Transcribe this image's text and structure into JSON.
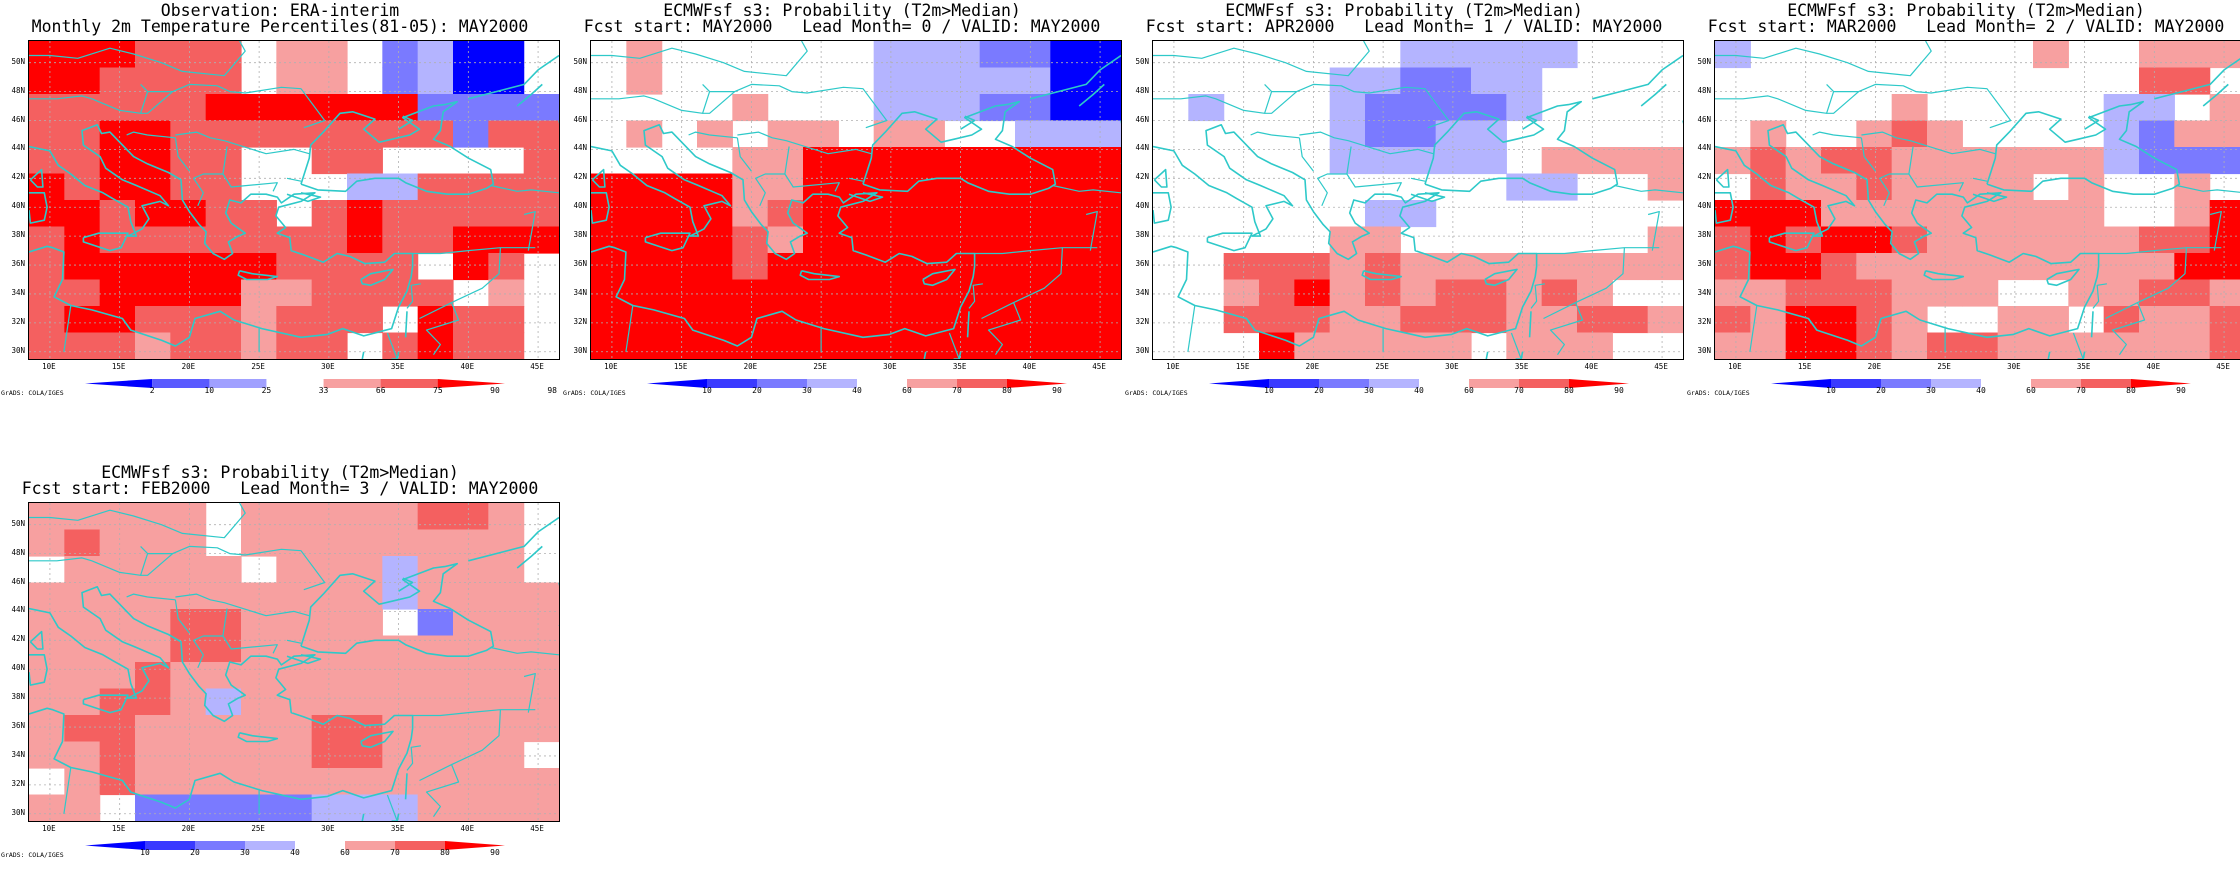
{
  "panels": [
    {
      "title1": "Observation: ERA-interim",
      "title2": "Monthly 2m Temperature Percentiles(81-05): MAY2000",
      "colorbar": [
        "2",
        "10",
        "25",
        "33",
        "66",
        "75",
        "90",
        "98"
      ],
      "colorbar_colors": [
        "#0000ff",
        "#5a5aff",
        "#a0a0ff",
        "#ffffff",
        "#f7a0a0",
        "#f46060",
        "#ff0000"
      ],
      "grads": "GrADS: COLA/IGES",
      "grid": [
        "DDDCCC-PP-GHBB-",
        "DDCCCC-PP-GHBB-",
        "CCCCCDDDDDDGGGG",
        "CCDDCCCCCCCCGCC",
        "CCDDCC--CC----C",
        "DCDDCC---HHCCCC",
        "DDCDDCC-CDCCCCC",
        "CDCCCCCCCDCCDDD",
        "CDDDDDDCCCC-DC-",
        "CCDDDDPPCCCC-P-",
        "CDDCCCPCCC-DCC-",
        "CCCPCCPCC-CDCC-"
      ]
    },
    {
      "title1": "ECMWFsf s3: Probability (T2m>Median)",
      "title2": "Fcst start: MAY2000   Lead Month= 0 / VALID: MAY2000",
      "colorbar": [
        "10",
        "20",
        "30",
        "40",
        "60",
        "70",
        "80",
        "90"
      ],
      "colorbar_colors": [
        "#0000ff",
        "#3a3aff",
        "#7a7aff",
        "#b4b4ff",
        "#ffffff",
        "#f7a0a0",
        "#f46060",
        "#ff0000"
      ],
      "grads": "GrADS: COLA/IGES",
      "grid": [
        "-P------HHHGGBB",
        "-P------HHHHHBB",
        "----P---HHHGGBB",
        "-P-P-PP-PP--HHH",
        "----PPDDDDDDDDD",
        "DDDDPPDDDDDDDDD",
        "DDDDPCDDDDDDDDD",
        "DDDDCPDDDDDDDDD",
        "DDDDCDDDDDDDDDD",
        "DDDDDDDDDDDDDDD",
        "DDDDDDDDDDDDDDD",
        "DDDDDDDDDDDDDDD"
      ]
    },
    {
      "title1": "ECMWFsf s3: Probability (T2m>Median)",
      "title2": "Fcst start: APR2000   Lead Month= 1 / VALID: MAY2000",
      "colorbar": [
        "10",
        "20",
        "30",
        "40",
        "60",
        "70",
        "80",
        "90"
      ],
      "colorbar_colors": [
        "#0000ff",
        "#3a3aff",
        "#7a7aff",
        "#b4b4ff",
        "#ffffff",
        "#f7a0a0",
        "#f46060",
        "#ff0000"
      ],
      "grads": "GrADS: COLA/IGES",
      "grid": [
        "-------HHHHH---",
        "-----HHGGHH----",
        "-H---HGGGGH----",
        "-----HGGHH-----",
        "-----HHHHH-PPPP",
        "----------HH--P",
        "------HH-------",
        "-----PP-------P",
        "--CCCPCPPPPPPPP",
        "--PCDPCPCCPCP--",
        "--CCCPPCCCPPCCP",
        "---DPPPPP-PPP--"
      ]
    },
    {
      "title1": "ECMWFsf s3: Probability (T2m>Median)",
      "title2": "Fcst start: MAR2000   Lead Month= 2 / VALID: MAY2000",
      "colorbar": [
        "10",
        "20",
        "30",
        "40",
        "60",
        "70",
        "80",
        "90"
      ],
      "colorbar_colors": [
        "#0000ff",
        "#3a3aff",
        "#7a7aff",
        "#b4b4ff",
        "#ffffff",
        "#f7a0a0",
        "#f46060",
        "#ff0000"
      ],
      "grads": "GrADS: COLA/IGES",
      "grid": [
        "H--------P--PPP",
        "------------CC-",
        "-----P-----HH-P",
        "-P--PCP----HGPP",
        "PCPCCPPPPPPHGGG",
        "-CPPCPPPP-P--P-",
        "DDDPPPPPPPP--PD",
        "CDCDDCPPPPPPCCD",
        "CDDCPPPPPPPPPDD",
        "PPCCCPPP--PPCCP",
        "CPDDCP--PP-CPPC",
        "PPDDCPCCPPPPPPC"
      ]
    },
    {
      "title1": "ECMWFsf s3: Probability (T2m>Median)",
      "title2": "Fcst start: FEB2000   Lead Month= 3 / VALID: MAY2000",
      "colorbar": [
        "10",
        "20",
        "30",
        "40",
        "60",
        "70",
        "80",
        "90"
      ],
      "colorbar_colors": [
        "#0000ff",
        "#3a3aff",
        "#7a7aff",
        "#b4b4ff",
        "#ffffff",
        "#f7a0a0",
        "#f46060",
        "#ff0000"
      ],
      "grads": "GrADS: COLA/IGES",
      "grid": [
        "PPPPP-PPPPPCCP-",
        "PCPPP-PPPPPPPP-",
        "-PPPPP-PPPHPPP-",
        "PPPPPPPPPPHPPPP",
        "PPPPCCPPPP-GPPP",
        "PPPPCCPPPPPPPPP",
        "PPPCPPPPPPPPPPP",
        "PPCCPHPPPPPPPPP",
        "PCCPPPPPCCPPPPP",
        "PPCPPPPPCCPPPP-",
        "-PCPPPPPPPPPPPP",
        "PP-GGGGGHHHPPPP"
      ]
    }
  ],
  "map_axes": {
    "lat_labels": [
      "50N",
      "48N",
      "46N",
      "44N",
      "42N",
      "40N",
      "38N",
      "36N",
      "34N",
      "32N",
      "30N"
    ],
    "lon_labels": [
      "10E",
      "15E",
      "20E",
      "25E",
      "30E",
      "35E",
      "40E",
      "45E"
    ],
    "lon_range": [
      8.5,
      46.5
    ],
    "lat_range": [
      29.5,
      51.5
    ]
  },
  "colors": {
    "coast": "#2ec9c9",
    "gridline": "#b0b0b0",
    "D": "#ff0000",
    "C": "#f46060",
    "P": "#f7a0a0",
    "H": "#b4b4ff",
    "G": "#7a7aff",
    "B": "#0000ff"
  }
}
